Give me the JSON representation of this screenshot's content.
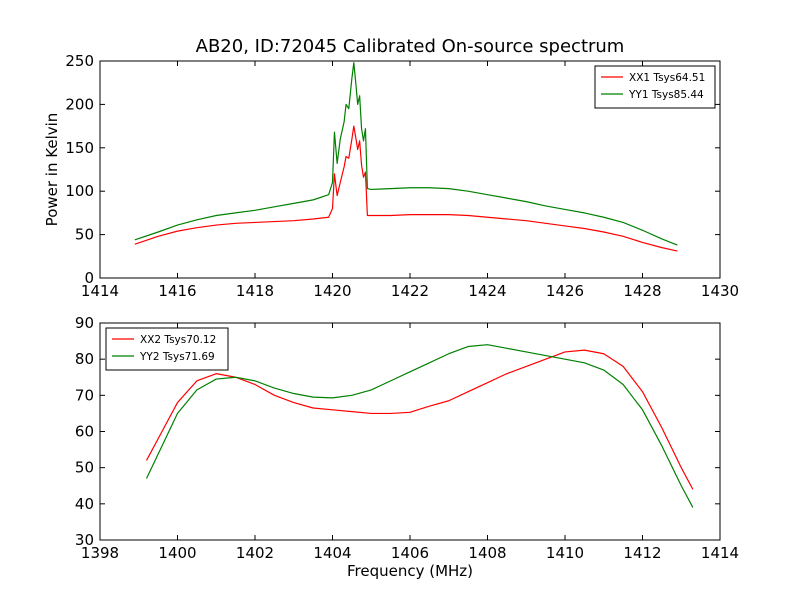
{
  "figure": {
    "title": "AB20, ID:72045 Calibrated On-source spectrum",
    "background": "#ffffff"
  },
  "chart_data": [
    {
      "type": "line",
      "title": "AB20, ID:72045 Calibrated On-source spectrum",
      "xlabel": "",
      "ylabel": "Power in Kelvin",
      "xlim": [
        1414,
        1430
      ],
      "ylim": [
        0,
        250
      ],
      "xticks": [
        1414,
        1416,
        1418,
        1420,
        1422,
        1424,
        1426,
        1428,
        1430
      ],
      "yticks": [
        0,
        50,
        100,
        150,
        200,
        250
      ],
      "grid": false,
      "legend_position": "top-right",
      "series": [
        {
          "name": "XX1 Tsys64.51",
          "color": "#ff0000",
          "points": [
            [
              1414.9,
              39
            ],
            [
              1415.5,
              48
            ],
            [
              1416.0,
              54
            ],
            [
              1416.5,
              58
            ],
            [
              1417.0,
              61
            ],
            [
              1417.5,
              63
            ],
            [
              1418.0,
              64
            ],
            [
              1418.5,
              65
            ],
            [
              1419.0,
              66
            ],
            [
              1419.5,
              68
            ],
            [
              1419.9,
              70
            ],
            [
              1420.0,
              80
            ],
            [
              1420.05,
              120
            ],
            [
              1420.12,
              95
            ],
            [
              1420.2,
              110
            ],
            [
              1420.3,
              128
            ],
            [
              1420.35,
              140
            ],
            [
              1420.42,
              138
            ],
            [
              1420.5,
              160
            ],
            [
              1420.55,
              175
            ],
            [
              1420.6,
              162
            ],
            [
              1420.65,
              148
            ],
            [
              1420.7,
              158
            ],
            [
              1420.75,
              130
            ],
            [
              1420.8,
              116
            ],
            [
              1420.85,
              122
            ],
            [
              1420.9,
              72
            ],
            [
              1421.0,
              72
            ],
            [
              1421.5,
              72
            ],
            [
              1422.0,
              73
            ],
            [
              1422.5,
              73
            ],
            [
              1423.0,
              73
            ],
            [
              1423.5,
              72
            ],
            [
              1424.0,
              70
            ],
            [
              1424.5,
              68
            ],
            [
              1425.0,
              66
            ],
            [
              1425.5,
              63
            ],
            [
              1426.0,
              60
            ],
            [
              1426.5,
              57
            ],
            [
              1427.0,
              53
            ],
            [
              1427.5,
              48
            ],
            [
              1428.0,
              41
            ],
            [
              1428.5,
              35
            ],
            [
              1428.9,
              31
            ]
          ]
        },
        {
          "name": "YY1 Tsys85.44",
          "color": "#008000",
          "points": [
            [
              1414.9,
              44
            ],
            [
              1415.5,
              53
            ],
            [
              1416.0,
              61
            ],
            [
              1416.5,
              67
            ],
            [
              1417.0,
              72
            ],
            [
              1417.5,
              75
            ],
            [
              1418.0,
              78
            ],
            [
              1418.5,
              82
            ],
            [
              1419.0,
              86
            ],
            [
              1419.5,
              90
            ],
            [
              1419.9,
              96
            ],
            [
              1420.0,
              110
            ],
            [
              1420.05,
              168
            ],
            [
              1420.12,
              132
            ],
            [
              1420.2,
              160
            ],
            [
              1420.3,
              180
            ],
            [
              1420.35,
              200
            ],
            [
              1420.42,
              195
            ],
            [
              1420.5,
              230
            ],
            [
              1420.55,
              248
            ],
            [
              1420.6,
              225
            ],
            [
              1420.65,
              200
            ],
            [
              1420.7,
              210
            ],
            [
              1420.75,
              172
            ],
            [
              1420.8,
              158
            ],
            [
              1420.85,
              172
            ],
            [
              1420.9,
              103
            ],
            [
              1421.0,
              102
            ],
            [
              1421.5,
              103
            ],
            [
              1422.0,
              104
            ],
            [
              1422.5,
              104
            ],
            [
              1423.0,
              103
            ],
            [
              1423.5,
              100
            ],
            [
              1424.0,
              96
            ],
            [
              1424.5,
              92
            ],
            [
              1425.0,
              88
            ],
            [
              1425.5,
              83
            ],
            [
              1426.0,
              79
            ],
            [
              1426.5,
              75
            ],
            [
              1427.0,
              70
            ],
            [
              1427.5,
              64
            ],
            [
              1428.0,
              55
            ],
            [
              1428.5,
              45
            ],
            [
              1428.9,
              38
            ]
          ]
        }
      ]
    },
    {
      "type": "line",
      "title": "",
      "xlabel": "Frequency (MHz)",
      "ylabel": "",
      "xlim": [
        1398,
        1414
      ],
      "ylim": [
        30,
        90
      ],
      "xticks": [
        1398,
        1400,
        1402,
        1404,
        1406,
        1408,
        1410,
        1412,
        1414
      ],
      "yticks": [
        30,
        40,
        50,
        60,
        70,
        80,
        90
      ],
      "grid": false,
      "legend_position": "top-left",
      "series": [
        {
          "name": "XX2 Tsys70.12",
          "color": "#ff0000",
          "points": [
            [
              1399.2,
              52
            ],
            [
              1399.6,
              60
            ],
            [
              1400.0,
              68
            ],
            [
              1400.5,
              74
            ],
            [
              1401.0,
              76
            ],
            [
              1401.5,
              75
            ],
            [
              1402.0,
              73
            ],
            [
              1402.5,
              70
            ],
            [
              1403.0,
              68
            ],
            [
              1403.5,
              66.5
            ],
            [
              1404.0,
              66
            ],
            [
              1404.5,
              65.5
            ],
            [
              1405.0,
              65
            ],
            [
              1405.5,
              65
            ],
            [
              1406.0,
              65.3
            ],
            [
              1406.2,
              66
            ],
            [
              1406.5,
              67
            ],
            [
              1407.0,
              68.5
            ],
            [
              1407.5,
              71
            ],
            [
              1408.0,
              73.5
            ],
            [
              1408.5,
              76
            ],
            [
              1409.0,
              78
            ],
            [
              1409.5,
              80
            ],
            [
              1410.0,
              82
            ],
            [
              1410.5,
              82.5
            ],
            [
              1411.0,
              81.5
            ],
            [
              1411.5,
              78
            ],
            [
              1412.0,
              71
            ],
            [
              1412.5,
              61
            ],
            [
              1413.0,
              50
            ],
            [
              1413.3,
              44
            ]
          ]
        },
        {
          "name": "YY2 Tsys71.69",
          "color": "#008000",
          "points": [
            [
              1399.2,
              47
            ],
            [
              1399.6,
              56
            ],
            [
              1400.0,
              65
            ],
            [
              1400.5,
              71.5
            ],
            [
              1401.0,
              74.5
            ],
            [
              1401.5,
              75
            ],
            [
              1402.0,
              74
            ],
            [
              1402.5,
              72
            ],
            [
              1403.0,
              70.5
            ],
            [
              1403.5,
              69.5
            ],
            [
              1404.0,
              69.3
            ],
            [
              1404.5,
              70
            ],
            [
              1405.0,
              71.5
            ],
            [
              1405.5,
              74
            ],
            [
              1406.0,
              76.5
            ],
            [
              1406.5,
              79
            ],
            [
              1407.0,
              81.5
            ],
            [
              1407.5,
              83.5
            ],
            [
              1408.0,
              84
            ],
            [
              1408.5,
              83
            ],
            [
              1409.0,
              82
            ],
            [
              1409.5,
              81
            ],
            [
              1410.0,
              80
            ],
            [
              1410.5,
              79
            ],
            [
              1411.0,
              77
            ],
            [
              1411.5,
              73
            ],
            [
              1412.0,
              66
            ],
            [
              1412.5,
              56
            ],
            [
              1413.0,
              45
            ],
            [
              1413.3,
              39
            ]
          ]
        }
      ]
    }
  ]
}
